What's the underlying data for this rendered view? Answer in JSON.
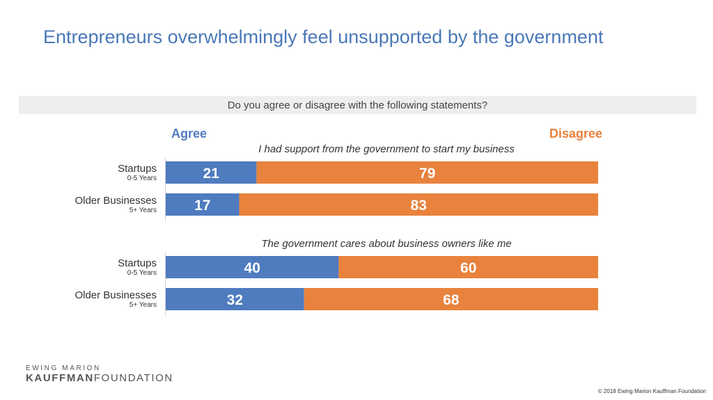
{
  "title": "Entrepreneurs overwhelmingly feel unsupported by the government",
  "question": "Do you agree or disagree with the following statements?",
  "legend": {
    "agree": "Agree",
    "disagree": "Disagree"
  },
  "colors": {
    "agree": "#4f7bbf",
    "disagree": "#e8823c",
    "title": "#4a78b6"
  },
  "chart_data": {
    "type": "bar",
    "orientation": "horizontal",
    "stacked": true,
    "series_names": [
      "Agree",
      "Disagree"
    ],
    "groups": [
      {
        "statement": "I had support from the government to start my business",
        "rows": [
          {
            "label": "Startups",
            "sublabel": "0-5 Years",
            "agree": 21,
            "disagree": 79
          },
          {
            "label": "Older Businesses",
            "sublabel": "5+ Years",
            "agree": 17,
            "disagree": 83
          }
        ]
      },
      {
        "statement": "The government cares about business owners like me",
        "rows": [
          {
            "label": "Startups",
            "sublabel": "0-5 Years",
            "agree": 40,
            "disagree": 60
          },
          {
            "label": "Older Businesses",
            "sublabel": "5+ Years",
            "agree": 32,
            "disagree": 68
          }
        ]
      }
    ]
  },
  "footer": {
    "logo_top": "EWING MARION",
    "logo_bold": "KAUFFMAN",
    "logo_rest": "FOUNDATION",
    "copyright": "© 2018 Ewing Marion Kauffman Foundation"
  }
}
